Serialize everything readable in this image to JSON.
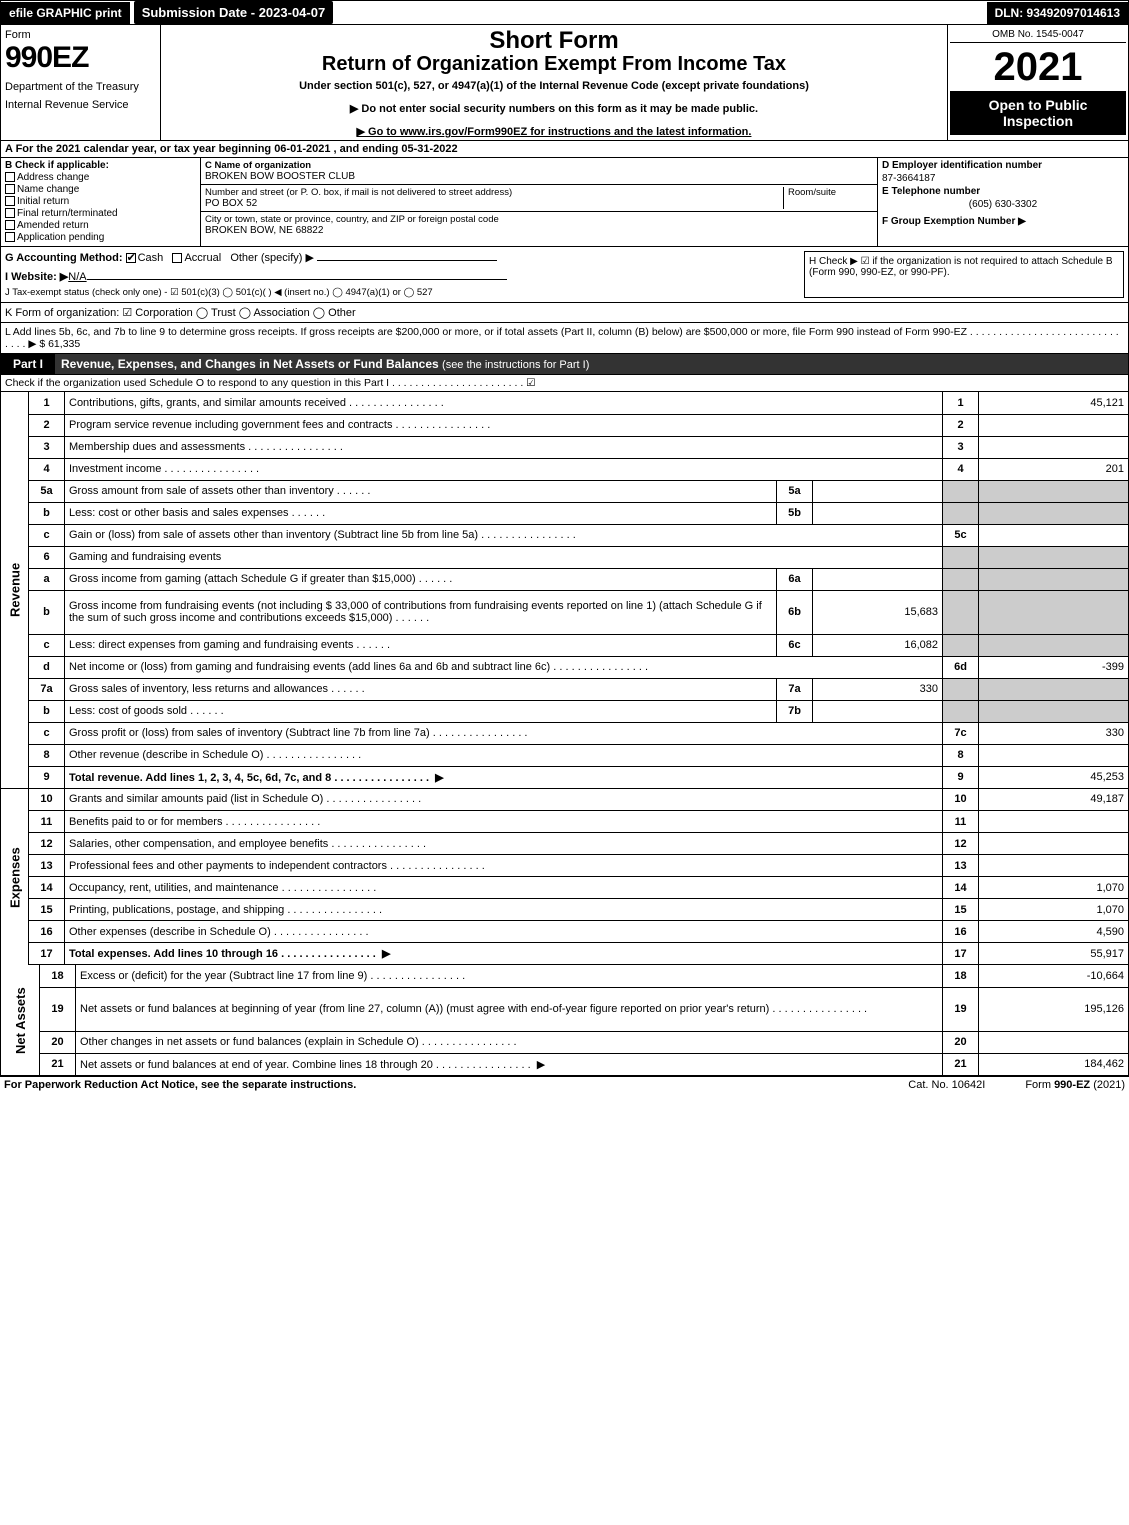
{
  "topbar": {
    "efile": "efile GRAPHIC print",
    "submission": "Submission Date - 2023-04-07",
    "dln": "DLN: 93492097014613"
  },
  "header": {
    "form_word": "Form",
    "form_number": "990EZ",
    "dept1": "Department of the Treasury",
    "dept2": "Internal Revenue Service",
    "title1": "Short Form",
    "title2": "Return of Organization Exempt From Income Tax",
    "sub": "Under section 501(c), 527, or 4947(a)(1) of the Internal Revenue Code (except private foundations)",
    "bullet1": "▶ Do not enter social security numbers on this form as it may be made public.",
    "bullet2": "▶ Go to www.irs.gov/Form990EZ for instructions and the latest information.",
    "omb": "OMB No. 1545-0047",
    "year": "2021",
    "open": "Open to Public Inspection"
  },
  "row_a": "A  For the 2021 calendar year, or tax year beginning 06-01-2021 , and ending 05-31-2022",
  "section_b": {
    "label": "B  Check if applicable:",
    "options": [
      "Address change",
      "Name change",
      "Initial return",
      "Final return/terminated",
      "Amended return",
      "Application pending"
    ]
  },
  "section_c": {
    "name_label": "C Name of organization",
    "name": "BROKEN BOW BOOSTER CLUB",
    "street_label": "Number and street (or P. O. box, if mail is not delivered to street address)",
    "room_label": "Room/suite",
    "street": "PO BOX 52",
    "city_label": "City or town, state or province, country, and ZIP or foreign postal code",
    "city": "BROKEN BOW, NE  68822"
  },
  "section_d": {
    "ein_label": "D Employer identification number",
    "ein": "87-3664187",
    "tel_label": "E Telephone number",
    "tel": "(605) 630-3302",
    "group_label": "F Group Exemption Number  ▶"
  },
  "row_g": {
    "label": "G Accounting Method:",
    "cash": "Cash",
    "accrual": "Accrual",
    "other": "Other (specify) ▶",
    "h_text": "H  Check ▶ ☑ if the organization is not required to attach Schedule B (Form 990, 990-EZ, or 990-PF)."
  },
  "row_i": {
    "label": "I Website: ▶",
    "value": "N/A"
  },
  "row_j": "J Tax-exempt status (check only one) - ☑ 501(c)(3)  ◯ 501(c)(  ) ◀ (insert no.)  ◯ 4947(a)(1) or  ◯ 527",
  "row_k": "K Form of organization:   ☑ Corporation   ◯ Trust   ◯ Association   ◯ Other",
  "row_l": {
    "text": "L Add lines 5b, 6c, and 7b to line 9 to determine gross receipts. If gross receipts are $200,000 or more, or if total assets (Part II, column (B) below) are $500,000 or more, file Form 990 instead of Form 990-EZ  .  .  .  .  .  .  .  .  .  .  .  .  .  .  .  .  .  .  .  .  .  .  .  .  .  .  .  .  .  .  ▶ $",
    "amount": "61,335"
  },
  "part1": {
    "label": "Part I",
    "title": "Revenue, Expenses, and Changes in Net Assets or Fund Balances",
    "sub": "(see the instructions for Part I)",
    "check": "Check if the organization used Schedule O to respond to any question in this Part I  .  .  .  .  .  .  .  .  .  .  .  .  .  .  .  .  .  .  .  .  .  .  .  ☑"
  },
  "sections": {
    "revenue_label": "Revenue",
    "expenses_label": "Expenses",
    "netassets_label": "Net Assets"
  },
  "lines": [
    {
      "n": "1",
      "desc": "Contributions, gifts, grants, and similar amounts received",
      "num": "1",
      "val": "45,121"
    },
    {
      "n": "2",
      "desc": "Program service revenue including government fees and contracts",
      "num": "2",
      "val": ""
    },
    {
      "n": "3",
      "desc": "Membership dues and assessments",
      "num": "3",
      "val": ""
    },
    {
      "n": "4",
      "desc": "Investment income",
      "num": "4",
      "val": "201"
    },
    {
      "n": "5a",
      "desc": "Gross amount from sale of assets other than inventory",
      "sub": "5a",
      "subval": "",
      "grey": true
    },
    {
      "n": "b",
      "desc": "Less: cost or other basis and sales expenses",
      "sub": "5b",
      "subval": "",
      "grey": true
    },
    {
      "n": "c",
      "desc": "Gain or (loss) from sale of assets other than inventory (Subtract line 5b from line 5a)",
      "num": "5c",
      "val": ""
    },
    {
      "n": "6",
      "desc": "Gaming and fundraising events",
      "greyfull": true
    },
    {
      "n": "a",
      "desc": "Gross income from gaming (attach Schedule G if greater than $15,000)",
      "sub": "6a",
      "subval": "",
      "grey": true
    },
    {
      "n": "b",
      "desc": "Gross income from fundraising events (not including $ 33,000 of contributions from fundraising events reported on line 1) (attach Schedule G if the sum of such gross income and contributions exceeds $15,000)",
      "sub": "6b",
      "subval": "15,683",
      "grey": true,
      "tall": true
    },
    {
      "n": "c",
      "desc": "Less: direct expenses from gaming and fundraising events",
      "sub": "6c",
      "subval": "16,082",
      "grey": true
    },
    {
      "n": "d",
      "desc": "Net income or (loss) from gaming and fundraising events (add lines 6a and 6b and subtract line 6c)",
      "num": "6d",
      "val": "-399"
    },
    {
      "n": "7a",
      "desc": "Gross sales of inventory, less returns and allowances",
      "sub": "7a",
      "subval": "330",
      "grey": true
    },
    {
      "n": "b",
      "desc": "Less: cost of goods sold",
      "sub": "7b",
      "subval": "",
      "grey": true
    },
    {
      "n": "c",
      "desc": "Gross profit or (loss) from sales of inventory (Subtract line 7b from line 7a)",
      "num": "7c",
      "val": "330"
    },
    {
      "n": "8",
      "desc": "Other revenue (describe in Schedule O)",
      "num": "8",
      "val": ""
    },
    {
      "n": "9",
      "desc": "Total revenue. Add lines 1, 2, 3, 4, 5c, 6d, 7c, and 8",
      "num": "9",
      "val": "45,253",
      "bold": true,
      "arrow": true
    }
  ],
  "exp_lines": [
    {
      "n": "10",
      "desc": "Grants and similar amounts paid (list in Schedule O)",
      "num": "10",
      "val": "49,187"
    },
    {
      "n": "11",
      "desc": "Benefits paid to or for members",
      "num": "11",
      "val": ""
    },
    {
      "n": "12",
      "desc": "Salaries, other compensation, and employee benefits",
      "num": "12",
      "val": ""
    },
    {
      "n": "13",
      "desc": "Professional fees and other payments to independent contractors",
      "num": "13",
      "val": ""
    },
    {
      "n": "14",
      "desc": "Occupancy, rent, utilities, and maintenance",
      "num": "14",
      "val": "1,070"
    },
    {
      "n": "15",
      "desc": "Printing, publications, postage, and shipping",
      "num": "15",
      "val": "1,070"
    },
    {
      "n": "16",
      "desc": "Other expenses (describe in Schedule O)",
      "num": "16",
      "val": "4,590"
    },
    {
      "n": "17",
      "desc": "Total expenses. Add lines 10 through 16",
      "num": "17",
      "val": "55,917",
      "bold": true,
      "arrow": true
    }
  ],
  "na_lines": [
    {
      "n": "18",
      "desc": "Excess or (deficit) for the year (Subtract line 17 from line 9)",
      "num": "18",
      "val": "-10,664"
    },
    {
      "n": "19",
      "desc": "Net assets or fund balances at beginning of year (from line 27, column (A)) (must agree with end-of-year figure reported on prior year's return)",
      "num": "19",
      "val": "195,126",
      "tall": true
    },
    {
      "n": "20",
      "desc": "Other changes in net assets or fund balances (explain in Schedule O)",
      "num": "20",
      "val": ""
    },
    {
      "n": "21",
      "desc": "Net assets or fund balances at end of year. Combine lines 18 through 20",
      "num": "21",
      "val": "184,462",
      "arrow": true
    }
  ],
  "footer": {
    "left": "For Paperwork Reduction Act Notice, see the separate instructions.",
    "mid": "Cat. No. 10642I",
    "right": "Form 990-EZ (2021)"
  }
}
